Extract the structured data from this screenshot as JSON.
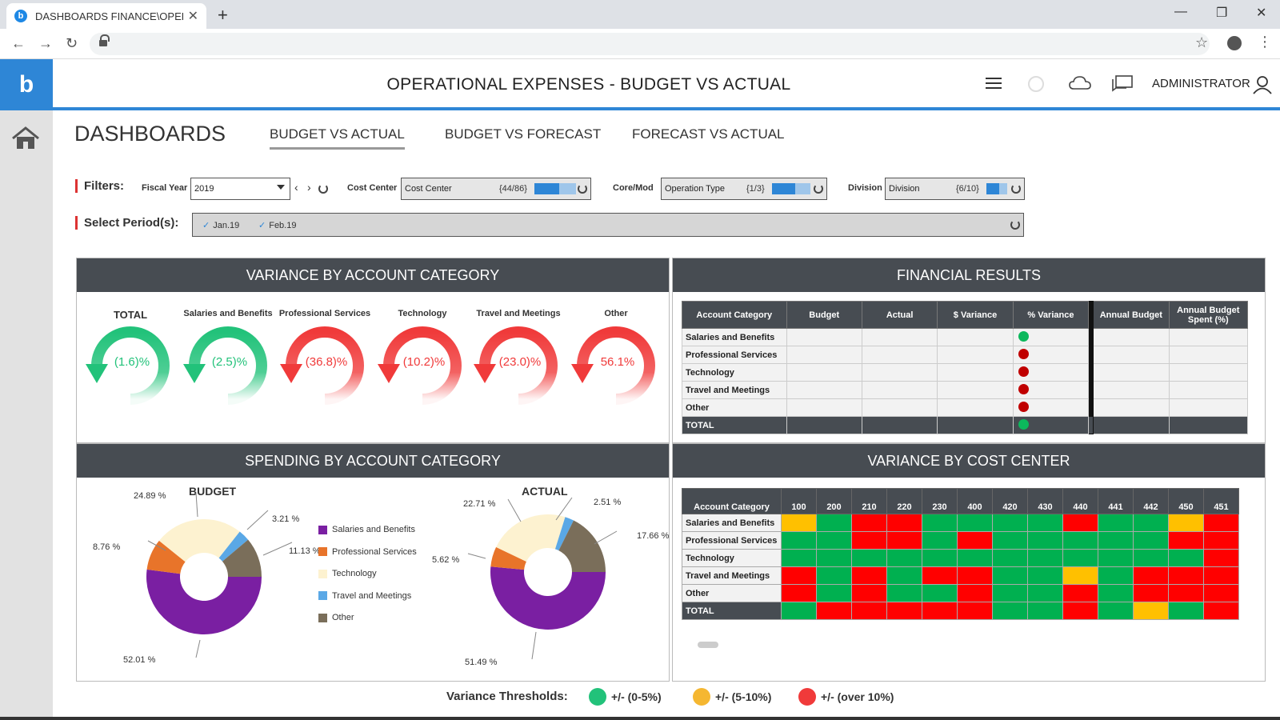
{
  "browser": {
    "tab_title": "DASHBOARDS FINANCE\\OPERAT",
    "tab_close": "✕",
    "new_tab": "+",
    "favicon": "b"
  },
  "app": {
    "logo": "b",
    "title": "OPERATIONAL EXPENSES - BUDGET VS ACTUAL",
    "user": "ADMINISTRATOR"
  },
  "page": {
    "title": "DASHBOARDS",
    "tabs": [
      {
        "label": "BUDGET VS ACTUAL",
        "active": true
      },
      {
        "label": "BUDGET VS FORECAST",
        "active": false
      },
      {
        "label": "FORECAST VS ACTUAL",
        "active": false
      }
    ]
  },
  "filters": {
    "label": "Filters:",
    "fiscal_year_label": "Fiscal Year",
    "fiscal_year_value": "2019",
    "cost_center_label": "Cost Center",
    "cost_center_value": "Cost Center",
    "cost_center_count": "{44/86}",
    "core_label": "Core/Mod",
    "core_value": "Operation Type",
    "core_count": "{1/3}",
    "division_label": "Division",
    "division_value": "Division",
    "division_count": "{6/10}",
    "period_label": "Select Period(s):",
    "periods": [
      "Jan.19",
      "Feb.19"
    ]
  },
  "variance_panel": {
    "title": "VARIANCE BY ACCOUNT CATEGORY",
    "gauges": [
      {
        "label": "TOTAL",
        "value": "(1.6)%",
        "status": "green"
      },
      {
        "label": "Salaries and Benefits",
        "value": "(2.5)%",
        "status": "green"
      },
      {
        "label": "Professional Services",
        "value": "(36.8)%",
        "status": "red"
      },
      {
        "label": "Technology",
        "value": "(10.2)%",
        "status": "red"
      },
      {
        "label": "Travel and Meetings",
        "value": "(23.0)%",
        "status": "red"
      },
      {
        "label": "Other",
        "value": "56.1%",
        "status": "red"
      }
    ]
  },
  "financial_results": {
    "title": "FINANCIAL RESULTS",
    "headers": [
      "Account Category",
      "Budget",
      "Actual",
      "$ Variance",
      "% Variance",
      "Annual Budget",
      "Annual Budget Spent (%)"
    ],
    "rows": [
      {
        "category": "Salaries and Benefits",
        "status": "green"
      },
      {
        "category": "Professional Services",
        "status": "red"
      },
      {
        "category": "Technology",
        "status": "red"
      },
      {
        "category": "Travel and Meetings",
        "status": "red"
      },
      {
        "category": "Other",
        "status": "red"
      },
      {
        "category": "TOTAL",
        "status": "green"
      }
    ]
  },
  "spending_panel": {
    "title": "SPENDING BY ACCOUNT CATEGORY",
    "budget_title": "BUDGET",
    "actual_title": "ACTUAL",
    "legend": [
      {
        "label": "Salaries and Benefits",
        "color": "#7a1fa2"
      },
      {
        "label": "Professional Services",
        "color": "#e8742a"
      },
      {
        "label": "Technology",
        "color": "#fdf2d0"
      },
      {
        "label": "Travel and Meetings",
        "color": "#5aa8e6"
      },
      {
        "label": "Other",
        "color": "#7a6e5a"
      }
    ],
    "budget_pct": [
      "52.01 %",
      "8.76 %",
      "24.89 %",
      "3.21 %",
      "11.13 %"
    ],
    "budget_values": [
      52.01,
      8.76,
      24.89,
      3.21,
      11.13
    ],
    "actual_pct": [
      "51.49 %",
      "5.62 %",
      "22.71 %",
      "2.51 %",
      "17.66 %"
    ],
    "actual_values": [
      51.49,
      5.62,
      22.71,
      2.51,
      17.66
    ]
  },
  "cost_center_panel": {
    "title": "VARIANCE BY COST CENTER",
    "header_label": "Account Category",
    "columns": [
      "100",
      "200",
      "210",
      "220",
      "230",
      "400",
      "420",
      "430",
      "440",
      "441",
      "442",
      "450",
      "451"
    ],
    "rows": [
      {
        "category": "Salaries and Benefits",
        "cells": [
          "y",
          "g",
          "r",
          "r",
          "g",
          "g",
          "g",
          "g",
          "r",
          "g",
          "g",
          "y",
          "r"
        ]
      },
      {
        "category": "Professional Services",
        "cells": [
          "g",
          "g",
          "r",
          "r",
          "g",
          "r",
          "g",
          "g",
          "g",
          "g",
          "g",
          "r",
          "r"
        ]
      },
      {
        "category": "Technology",
        "cells": [
          "g",
          "g",
          "g",
          "g",
          "g",
          "g",
          "g",
          "g",
          "g",
          "g",
          "g",
          "g",
          "r"
        ]
      },
      {
        "category": "Travel and Meetings",
        "cells": [
          "r",
          "g",
          "r",
          "g",
          "r",
          "r",
          "g",
          "g",
          "y",
          "g",
          "r",
          "r",
          "r"
        ]
      },
      {
        "category": "Other",
        "cells": [
          "r",
          "g",
          "r",
          "g",
          "g",
          "r",
          "g",
          "g",
          "r",
          "g",
          "r",
          "r",
          "r"
        ]
      },
      {
        "category": "TOTAL",
        "cells": [
          "g",
          "r",
          "r",
          "r",
          "r",
          "r",
          "g",
          "g",
          "r",
          "g",
          "y",
          "g",
          "r"
        ]
      }
    ]
  },
  "colors": {
    "green": "#00b050",
    "yellow": "#ffc000",
    "red": "#ff0000",
    "gauge_green": "#22c27a",
    "gauge_red": "#f03a3a",
    "dark": "#474c52"
  },
  "thresholds": {
    "label": "Variance Thresholds:",
    "items": [
      {
        "label": "+/- (0-5%)",
        "color": "#22c27a"
      },
      {
        "label": "+/- (5-10%)",
        "color": "#f5b731"
      },
      {
        "label": "+/- (over 10%)",
        "color": "#f03a3a"
      }
    ]
  }
}
